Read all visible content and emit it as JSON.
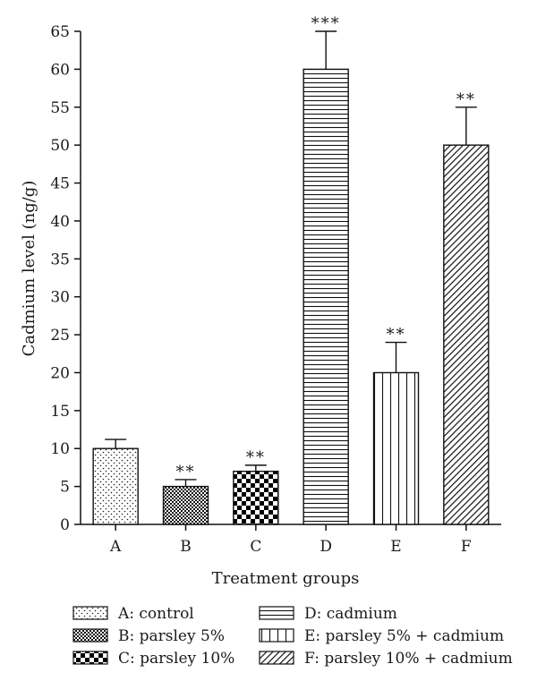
{
  "chart_data": {
    "type": "bar",
    "title": "",
    "xlabel": "Treatment groups",
    "ylabel": "Cadmium level (ng/g)",
    "ylim": [
      0,
      65
    ],
    "yticks": [
      0,
      5,
      10,
      15,
      20,
      25,
      30,
      35,
      40,
      45,
      50,
      55,
      60,
      65
    ],
    "categories": [
      "A",
      "B",
      "C",
      "D",
      "E",
      "F"
    ],
    "values": [
      10,
      5,
      7,
      60,
      20,
      50
    ],
    "error": [
      1.2,
      0.9,
      0.8,
      5,
      4,
      5
    ],
    "significance": [
      "",
      "**",
      "**",
      "***",
      "**",
      "**"
    ],
    "patterns": [
      "dots",
      "small-checker",
      "large-checker",
      "horizontal-lines",
      "vertical-lines",
      "diagonal-hatch"
    ],
    "legend": {
      "placement": "bottom",
      "entries": [
        "A: control",
        "B: parsley 5%",
        "C: parsley 10%",
        "D: cadmium",
        "E: parsley 5% + cadmium",
        "F: parsley 10% + cadmium"
      ]
    },
    "grid": false
  }
}
